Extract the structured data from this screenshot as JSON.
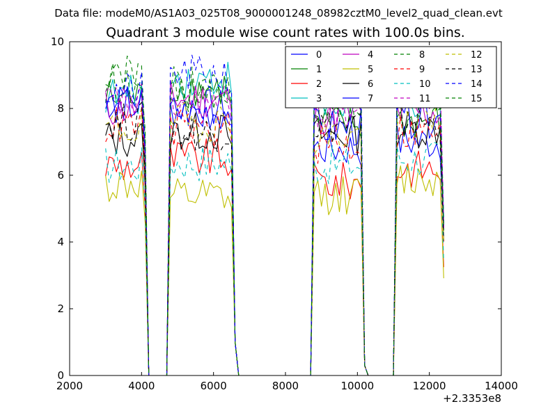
{
  "suptitle": "Data file: modeM0/AS1A03_025T08_9000001248_08982cztM0_level2_quad_clean.evt",
  "chart_data": {
    "type": "line",
    "title": "Quadrant 3 module wise count rates with 100.0s bins.",
    "xlabel": "",
    "ylabel": "",
    "xlim": [
      2000,
      14000
    ],
    "ylim": [
      0,
      10
    ],
    "x_ticks": [
      2000,
      4000,
      6000,
      8000,
      10000,
      12000,
      14000
    ],
    "y_ticks": [
      0,
      2,
      4,
      6,
      8,
      10
    ],
    "x_tick_labels": [
      "2000",
      "4000",
      "6000",
      "8000",
      "10000",
      "12000",
      "14000"
    ],
    "y_tick_labels": [
      "0",
      "2",
      "4",
      "6",
      "8",
      "10"
    ],
    "x_offset_label": "+2.3353e8",
    "grid": false,
    "legend_position": "top-right",
    "legend_columns": 4,
    "x_breakpoints": [
      3000,
      4000,
      4100,
      4200,
      4700,
      4800,
      6400,
      6500,
      6600,
      6700,
      8700,
      8800,
      10100,
      10200,
      10300,
      11000,
      11100,
      12300,
      12400
    ],
    "series": [
      {
        "name": "0",
        "color": "#0000ff",
        "dash": "",
        "levels": [
          8.2,
          8.0,
          6.8,
          7.0,
          8.2
        ]
      },
      {
        "name": "1",
        "color": "#008000",
        "dash": "",
        "levels": [
          8.3,
          8.6,
          7.5,
          7.6,
          8.4
        ]
      },
      {
        "name": "2",
        "color": "#ff0000",
        "dash": "",
        "levels": [
          6.3,
          6.5,
          5.8,
          6.2,
          5.9
        ]
      },
      {
        "name": "3",
        "color": "#00bfbf",
        "dash": "",
        "levels": [
          8.4,
          8.9,
          8.0,
          8.2,
          8.6
        ]
      },
      {
        "name": "4",
        "color": "#bf00bf",
        "dash": "",
        "levels": [
          8.0,
          8.3,
          7.8,
          7.9,
          8.1
        ]
      },
      {
        "name": "5",
        "color": "#bfbf00",
        "dash": "",
        "levels": [
          5.7,
          5.3,
          5.4,
          5.9,
          5.3
        ]
      },
      {
        "name": "6",
        "color": "#000000",
        "dash": "",
        "levels": [
          7.1,
          7.3,
          7.2,
          7.4,
          7.3
        ]
      },
      {
        "name": "7",
        "color": "#0000ff",
        "dash": "",
        "levels": [
          8.1,
          7.9,
          7.4,
          7.7,
          7.9
        ]
      },
      {
        "name": "8",
        "color": "#008000",
        "dash": "6,5",
        "levels": [
          8.8,
          8.7,
          8.2,
          8.6,
          8.3
        ]
      },
      {
        "name": "9",
        "color": "#ff0000",
        "dash": "6,5",
        "levels": [
          7.5,
          7.4,
          6.9,
          7.3,
          7.2
        ]
      },
      {
        "name": "10",
        "color": "#00bfbf",
        "dash": "6,5",
        "levels": [
          6.3,
          6.4,
          6.3,
          6.5,
          6.2
        ]
      },
      {
        "name": "11",
        "color": "#bf00bf",
        "dash": "6,5",
        "levels": [
          8.2,
          8.1,
          7.9,
          8.5,
          8.0
        ]
      },
      {
        "name": "12",
        "color": "#bfbf00",
        "dash": "6,5",
        "levels": [
          7.4,
          7.6,
          7.2,
          7.9,
          7.2
        ]
      },
      {
        "name": "13",
        "color": "#000000",
        "dash": "6,5",
        "levels": [
          7.6,
          7.3,
          7.5,
          7.6,
          7.4
        ]
      },
      {
        "name": "14",
        "color": "#0000ff",
        "dash": "6,5",
        "levels": [
          8.5,
          9.0,
          8.5,
          8.7,
          8.3
        ]
      },
      {
        "name": "15",
        "color": "#008000",
        "dash": "6,5",
        "levels": [
          9.2,
          8.5,
          8.6,
          8.4,
          7.9
        ]
      }
    ]
  }
}
